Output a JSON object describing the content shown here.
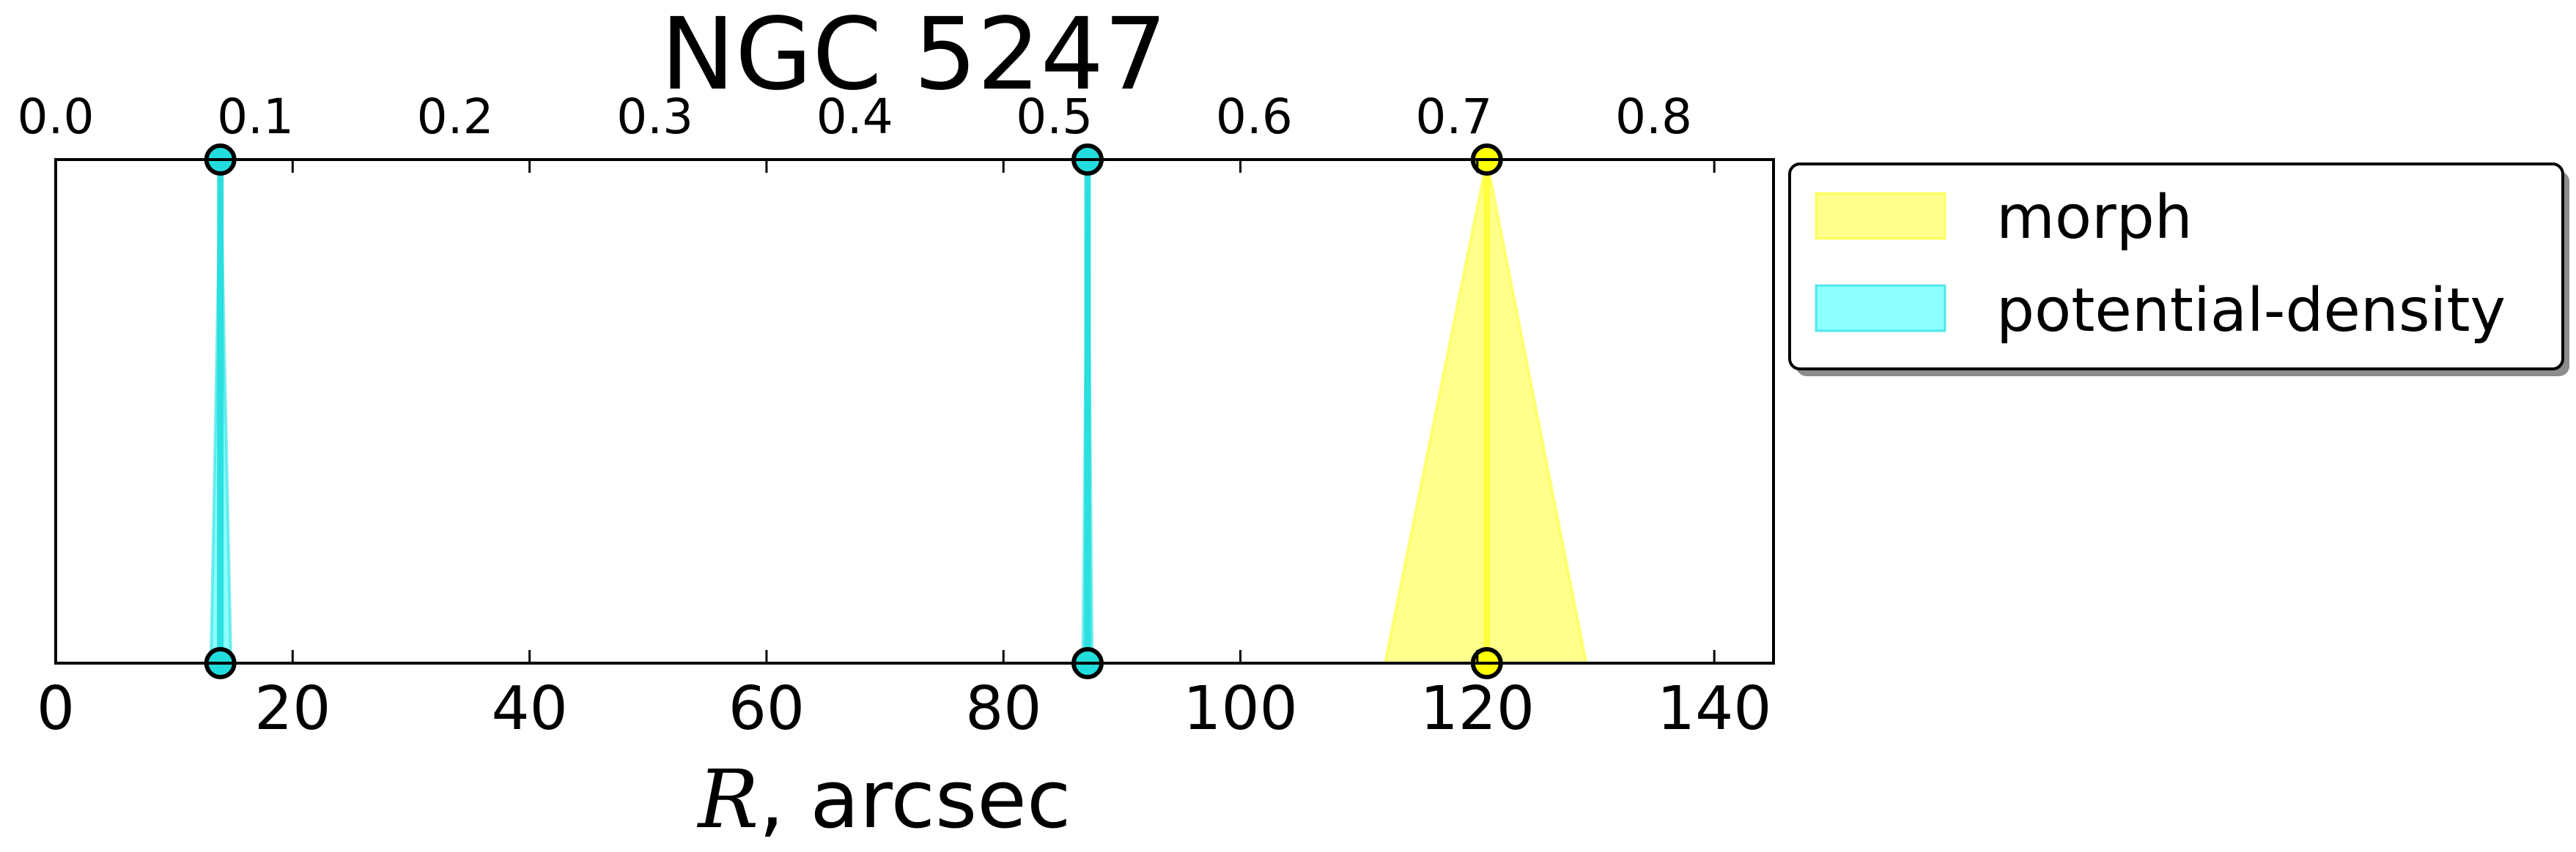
{
  "chart_data": {
    "type": "area",
    "title": "NGC 5247",
    "xlabel_symbol": "R",
    "xlabel_text": ", arcsec",
    "xlim": [
      0,
      145
    ],
    "ylim": [
      0,
      1
    ],
    "x_ticks": [
      "0",
      "20",
      "40",
      "60",
      "80",
      "100",
      "120",
      "140"
    ],
    "x_tick_values": [
      0,
      20,
      40,
      60,
      80,
      100,
      120,
      140
    ],
    "top_xlim": [
      0,
      0.86
    ],
    "top_ticks": [
      "0.0",
      "0.1",
      "0.2",
      "0.3",
      "0.4",
      "0.5",
      "0.6",
      "0.7",
      "0.8"
    ],
    "top_tick_values": [
      0,
      0.1,
      0.2,
      0.3,
      0.4,
      0.5,
      0.6,
      0.7,
      0.8
    ],
    "grid": false,
    "legend_position": "outside-right-top",
    "series": [
      {
        "name": "morph",
        "color": "#ffff00",
        "alpha": 0.45,
        "line_color": "#ffff33",
        "marker_fill": "#ffff00",
        "bands": [
          {
            "center": 120.8,
            "low": 112.2,
            "high": 129.2
          }
        ]
      },
      {
        "name": "potential-density",
        "color": "#00ffff",
        "alpha": 0.45,
        "line_color": "#22dddd",
        "marker_fill": "#22dddd",
        "bands": [
          {
            "center": 13.9,
            "low": 13.1,
            "high": 14.8
          },
          {
            "center": 87.1,
            "low": 86.7,
            "high": 87.5
          }
        ]
      }
    ]
  }
}
